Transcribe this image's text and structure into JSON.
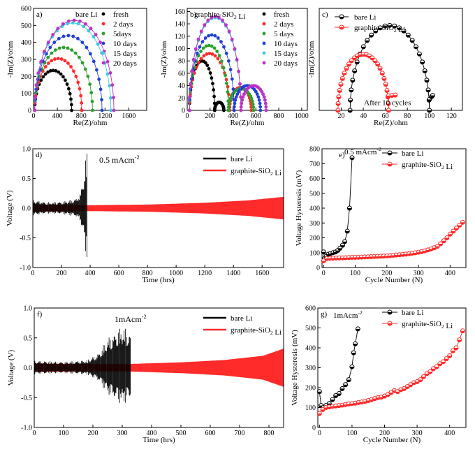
{
  "chart_data": [
    {
      "id": "a",
      "type": "scatter",
      "panel_label": "a)",
      "title": "bare Li",
      "xlabel": "Re(Z)/ohm",
      "ylabel": "-Im(Z)/ohm",
      "xlim": [
        0,
        1900
      ],
      "ylim": [
        0,
        600
      ],
      "xticks": [
        0,
        400,
        800,
        1200,
        1600
      ],
      "yticks": [
        0,
        100,
        200,
        300,
        400,
        500,
        600
      ],
      "legend_position": "top-right",
      "series": [
        {
          "name": "fresh",
          "color": "#000000",
          "arcs": [
            [
              20,
              640,
              235
            ]
          ]
        },
        {
          "name": "2 days",
          "color": "#ff2a2a",
          "arcs": [
            [
              20,
              810,
              305
            ]
          ]
        },
        {
          "name": "5days",
          "color": "#2ca02c",
          "arcs": [
            [
              20,
              990,
              370
            ]
          ]
        },
        {
          "name": "10 days",
          "color": "#1f3fd8",
          "arcs": [
            [
              20,
              1150,
              440
            ]
          ]
        },
        {
          "name": "15 days",
          "color": "#40c8e0",
          "arcs": [
            [
              20,
              1300,
              515
            ]
          ]
        },
        {
          "name": "20 days",
          "color": "#c030c8",
          "arcs": [
            [
              20,
              1350,
              530
            ]
          ]
        }
      ]
    },
    {
      "id": "b",
      "type": "scatter",
      "panel_label": "b)",
      "title": "graphite-SiO₂ Li",
      "xlabel": "Re(Z)/ohm",
      "ylabel": "-Im(Z)/ohm",
      "xlim": [
        0,
        1050
      ],
      "ylim": [
        0,
        165
      ],
      "xticks": [
        0,
        200,
        400,
        600,
        800,
        1000
      ],
      "yticks": [
        0,
        20,
        40,
        60,
        80,
        100,
        120,
        140,
        160
      ],
      "legend_position": "top-right",
      "series": [
        {
          "name": "fresh",
          "color": "#000000",
          "arcs": [
            [
              20,
              240,
              80
            ],
            [
              240,
              320,
              13
            ]
          ]
        },
        {
          "name": "2 days",
          "color": "#ff2a2a",
          "arcs": [
            [
              20,
              370,
              92
            ],
            [
              370,
              560,
              37
            ]
          ]
        },
        {
          "name": "5 days",
          "color": "#2ca02c",
          "arcs": [
            [
              20,
              360,
              105
            ],
            [
              360,
              580,
              35
            ]
          ]
        },
        {
          "name": "10 days",
          "color": "#1f3fd8",
          "arcs": [
            [
              20,
              410,
              122
            ],
            [
              410,
              640,
              40
            ]
          ]
        },
        {
          "name": "15 days",
          "color": "#40c8e0",
          "arcs": [
            [
              20,
              470,
              150
            ],
            [
              470,
              690,
              40
            ]
          ]
        },
        {
          "name": "20 days",
          "color": "#c030c8",
          "arcs": [
            [
              20,
              470,
              152
            ],
            [
              470,
              690,
              40
            ]
          ]
        }
      ]
    },
    {
      "id": "c",
      "type": "scatter",
      "panel_label": "c)",
      "xlabel": "Re(Z)/ohm",
      "ylabel": "-Im(Z)/ohm",
      "xlim": [
        0,
        130
      ],
      "ylim": [
        0,
        30
      ],
      "xticks": [
        20,
        40,
        60,
        80,
        100,
        120
      ],
      "yticks": [],
      "annotation": "After 10 cycles",
      "legend_position": "top-left",
      "series": [
        {
          "name": "bare Li",
          "color": "#000000",
          "arcs": [
            [
              28,
              100,
              25
            ]
          ],
          "tail": [
            [
              100,
              3.2
            ],
            [
              102,
              4.0
            ],
            [
              103,
              4.4
            ]
          ]
        },
        {
          "name": "graphite-SiO₂ Li",
          "color": "#ff2a2a",
          "arcs": [
            [
              17,
              63,
              16.5
            ]
          ],
          "tail": [
            [
              63,
              4.3
            ],
            [
              66,
              4.4
            ],
            [
              69,
              4.5
            ]
          ]
        }
      ]
    },
    {
      "id": "d",
      "type": "line",
      "panel_label": "d)",
      "annotation": "0.5 mAcm⁻²",
      "xlabel": "Time (hrs)",
      "ylabel": "Voltage (V)",
      "xlim": [
        0,
        1750
      ],
      "ylim": [
        -1.0,
        1.0
      ],
      "xticks": [
        0,
        200,
        400,
        600,
        800,
        1000,
        1200,
        1400,
        1600
      ],
      "yticks": [
        -1.0,
        -0.5,
        0.0,
        0.5,
        1.0
      ],
      "legend_position": "top-right",
      "series": [
        {
          "name": "bare Li",
          "color": "#000000",
          "end": 380,
          "amplitude": [
            [
              0,
              0.14
            ],
            [
              100,
              0.1
            ],
            [
              200,
              0.11
            ],
            [
              300,
              0.16
            ],
            [
              330,
              0.25
            ],
            [
              360,
              0.6
            ],
            [
              375,
              1.0
            ],
            [
              380,
              0.9
            ]
          ]
        },
        {
          "name": "graphite-SiO₂ Li",
          "color": "#ff2a2a",
          "end": 1750,
          "amplitude": [
            [
              0,
              0.06
            ],
            [
              400,
              0.05
            ],
            [
              800,
              0.06
            ],
            [
              1200,
              0.09
            ],
            [
              1500,
              0.13
            ],
            [
              1750,
              0.19
            ]
          ]
        }
      ]
    },
    {
      "id": "e",
      "type": "line",
      "panel_label": "e)",
      "annotation": "0.5 mAcm⁻²",
      "xlabel": "Cycle Number (N)",
      "ylabel": "Voltage Hysteresis (mV)",
      "xlim": [
        -5,
        450
      ],
      "ylim": [
        0,
        800
      ],
      "xticks": [
        0,
        100,
        200,
        300,
        400
      ],
      "yticks": [
        0,
        100,
        200,
        300,
        400,
        500,
        600,
        700,
        800
      ],
      "legend_position": "top-right",
      "series": [
        {
          "name": "bare Li",
          "color": "#000000",
          "x": [
            0,
            3,
            8,
            15,
            22,
            30,
            38,
            45,
            52,
            60,
            67,
            75,
            82,
            90
          ],
          "y": [
            105,
            60,
            75,
            90,
            95,
            100,
            105,
            115,
            130,
            150,
            175,
            245,
            400,
            740
          ]
        },
        {
          "name": "graphite-SiO₂ Li",
          "color": "#ff2a2a",
          "x": [
            0,
            10,
            20,
            30,
            40,
            50,
            60,
            70,
            80,
            90,
            100,
            110,
            120,
            130,
            140,
            150,
            160,
            170,
            180,
            190,
            200,
            210,
            220,
            230,
            240,
            250,
            260,
            270,
            280,
            290,
            300,
            310,
            320,
            330,
            340,
            350,
            360,
            370,
            380,
            390,
            400,
            410,
            420,
            430,
            440
          ],
          "y": [
            45,
            60,
            62,
            63,
            64,
            65,
            65,
            66,
            67,
            68,
            68,
            69,
            70,
            71,
            72,
            73,
            74,
            75,
            76,
            77,
            78,
            80,
            82,
            84,
            86,
            88,
            90,
            93,
            96,
            99,
            103,
            107,
            112,
            118,
            125,
            133,
            143,
            160,
            180,
            200,
            225,
            245,
            265,
            285,
            305
          ]
        }
      ]
    },
    {
      "id": "f",
      "type": "line",
      "panel_label": "f)",
      "annotation": "1mAcm⁻²",
      "xlabel": "Time (hrs)",
      "ylabel": "Voltage (V)",
      "xlim": [
        0,
        850
      ],
      "ylim": [
        -1.0,
        1.0
      ],
      "xticks": [
        0,
        100,
        200,
        300,
        400,
        500,
        600,
        700,
        800
      ],
      "yticks": [
        -1.0,
        -0.5,
        0.0,
        0.5,
        1.0
      ],
      "legend_position": "top-right",
      "series": [
        {
          "name": "bare Li",
          "color": "#000000",
          "end": 328,
          "amplitude": [
            [
              0,
              0.12
            ],
            [
              100,
              0.1
            ],
            [
              180,
              0.13
            ],
            [
              220,
              0.25
            ],
            [
              250,
              0.5
            ],
            [
              280,
              0.62
            ],
            [
              300,
              0.7
            ],
            [
              328,
              0.6
            ]
          ]
        },
        {
          "name": "graphite-SiO₂ Li",
          "color": "#ff2a2a",
          "end": 850,
          "amplitude": [
            [
              0,
              0.07
            ],
            [
              300,
              0.06
            ],
            [
              500,
              0.09
            ],
            [
              650,
              0.13
            ],
            [
              780,
              0.2
            ],
            [
              850,
              0.32
            ]
          ]
        }
      ]
    },
    {
      "id": "g",
      "type": "line",
      "panel_label": "g)",
      "annotation": "1mAcm⁻²",
      "xlabel": "Cycle Number (N)",
      "ylabel": "Voltage Hysteresis (mV)",
      "xlim": [
        -5,
        450
      ],
      "ylim": [
        0,
        600
      ],
      "xticks": [
        0,
        100,
        200,
        300,
        400
      ],
      "yticks": [
        0,
        100,
        200,
        300,
        400,
        500,
        600
      ],
      "legend_position": "top-right",
      "series": [
        {
          "name": "bare Li",
          "color": "#000000",
          "x": [
            0,
            5,
            12,
            20,
            30,
            40,
            50,
            60,
            70,
            80,
            90,
            100,
            105,
            110,
            118
          ],
          "y": [
            180,
            110,
            100,
            110,
            120,
            140,
            160,
            170,
            195,
            215,
            240,
            305,
            375,
            420,
            495
          ]
        },
        {
          "name": "graphite-SiO₂ Li",
          "color": "#ff2a2a",
          "x": [
            0,
            10,
            20,
            30,
            40,
            50,
            60,
            70,
            80,
            90,
            100,
            110,
            120,
            130,
            140,
            150,
            160,
            170,
            180,
            190,
            200,
            210,
            220,
            230,
            240,
            250,
            260,
            270,
            280,
            290,
            300,
            310,
            320,
            330,
            340,
            350,
            360,
            370,
            380,
            390,
            400,
            410,
            420,
            430,
            440
          ],
          "y": [
            70,
            90,
            100,
            103,
            106,
            108,
            110,
            112,
            115,
            118,
            120,
            122,
            125,
            128,
            131,
            135,
            140,
            145,
            150,
            152,
            158,
            165,
            175,
            185,
            180,
            190,
            195,
            205,
            215,
            225,
            230,
            240,
            255,
            270,
            280,
            295,
            305,
            320,
            330,
            345,
            360,
            385,
            400,
            440,
            485
          ]
        }
      ]
    }
  ]
}
